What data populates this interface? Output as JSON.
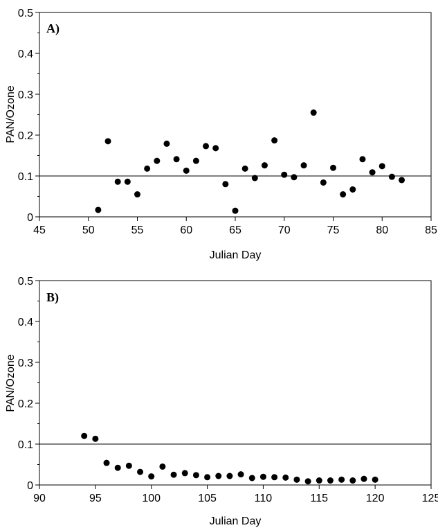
{
  "chart_data": [
    {
      "type": "scatter",
      "panel_label": "A)",
      "xlabel": "Julian Day",
      "ylabel": "PAN/Ozone",
      "xlim": [
        45,
        85
      ],
      "ylim": [
        0,
        0.5
      ],
      "xticks": [
        45,
        50,
        55,
        60,
        65,
        70,
        75,
        80,
        85
      ],
      "xtick_labels": [
        "45",
        "50",
        "55",
        "60",
        "65",
        "70",
        "75",
        "80",
        "85"
      ],
      "yticks": [
        0,
        0.1,
        0.2,
        0.3,
        0.4,
        0.5
      ],
      "ytick_labels": [
        "0",
        "0.1",
        "0.2",
        "0.3",
        "0.4",
        "0.5"
      ],
      "reference_line_y": 0.1,
      "grid": false,
      "marker_color": "#000000",
      "points": [
        {
          "x": 51,
          "y": 0.017
        },
        {
          "x": 52,
          "y": 0.185
        },
        {
          "x": 53,
          "y": 0.086
        },
        {
          "x": 54,
          "y": 0.086
        },
        {
          "x": 55,
          "y": 0.055
        },
        {
          "x": 56,
          "y": 0.118
        },
        {
          "x": 57,
          "y": 0.137
        },
        {
          "x": 58,
          "y": 0.179
        },
        {
          "x": 59,
          "y": 0.141
        },
        {
          "x": 60,
          "y": 0.113
        },
        {
          "x": 61,
          "y": 0.137
        },
        {
          "x": 62,
          "y": 0.173
        },
        {
          "x": 63,
          "y": 0.168
        },
        {
          "x": 64,
          "y": 0.08
        },
        {
          "x": 65,
          "y": 0.015
        },
        {
          "x": 66,
          "y": 0.118
        },
        {
          "x": 67,
          "y": 0.095
        },
        {
          "x": 68,
          "y": 0.126
        },
        {
          "x": 69,
          "y": 0.187
        },
        {
          "x": 70,
          "y": 0.103
        },
        {
          "x": 71,
          "y": 0.097
        },
        {
          "x": 72,
          "y": 0.126
        },
        {
          "x": 73,
          "y": 0.255
        },
        {
          "x": 74,
          "y": 0.084
        },
        {
          "x": 75,
          "y": 0.12
        },
        {
          "x": 76,
          "y": 0.055
        },
        {
          "x": 77,
          "y": 0.067
        },
        {
          "x": 78,
          "y": 0.141
        },
        {
          "x": 79,
          "y": 0.109
        },
        {
          "x": 80,
          "y": 0.124
        },
        {
          "x": 81,
          "y": 0.098
        },
        {
          "x": 82,
          "y": 0.09
        }
      ]
    },
    {
      "type": "scatter",
      "panel_label": "B)",
      "xlabel": "Julian Day",
      "ylabel": "PAN/Ozone",
      "xlim": [
        90,
        125
      ],
      "ylim": [
        0,
        0.5
      ],
      "xticks": [
        90,
        95,
        100,
        105,
        110,
        115,
        120,
        125
      ],
      "xtick_labels": [
        "90",
        "95",
        "100",
        "105",
        "110",
        "115",
        "120",
        "125"
      ],
      "yticks": [
        0,
        0.1,
        0.2,
        0.3,
        0.4,
        0.5
      ],
      "ytick_labels": [
        "0",
        "0.1",
        "0.2",
        "0.3",
        "0.4",
        "0.5"
      ],
      "reference_line_y": 0.1,
      "grid": false,
      "marker_color": "#000000",
      "points": [
        {
          "x": 94,
          "y": 0.12
        },
        {
          "x": 95,
          "y": 0.113
        },
        {
          "x": 96,
          "y": 0.054
        },
        {
          "x": 97,
          "y": 0.042
        },
        {
          "x": 98,
          "y": 0.047
        },
        {
          "x": 99,
          "y": 0.032
        },
        {
          "x": 100,
          "y": 0.021
        },
        {
          "x": 101,
          "y": 0.045
        },
        {
          "x": 102,
          "y": 0.025
        },
        {
          "x": 103,
          "y": 0.029
        },
        {
          "x": 104,
          "y": 0.024
        },
        {
          "x": 105,
          "y": 0.019
        },
        {
          "x": 106,
          "y": 0.022
        },
        {
          "x": 107,
          "y": 0.022
        },
        {
          "x": 108,
          "y": 0.026
        },
        {
          "x": 109,
          "y": 0.017
        },
        {
          "x": 110,
          "y": 0.02
        },
        {
          "x": 111,
          "y": 0.019
        },
        {
          "x": 112,
          "y": 0.018
        },
        {
          "x": 113,
          "y": 0.013
        },
        {
          "x": 114,
          "y": 0.009
        },
        {
          "x": 115,
          "y": 0.011
        },
        {
          "x": 116,
          "y": 0.011
        },
        {
          "x": 117,
          "y": 0.013
        },
        {
          "x": 118,
          "y": 0.011
        },
        {
          "x": 119,
          "y": 0.015
        },
        {
          "x": 120,
          "y": 0.013
        }
      ]
    }
  ]
}
